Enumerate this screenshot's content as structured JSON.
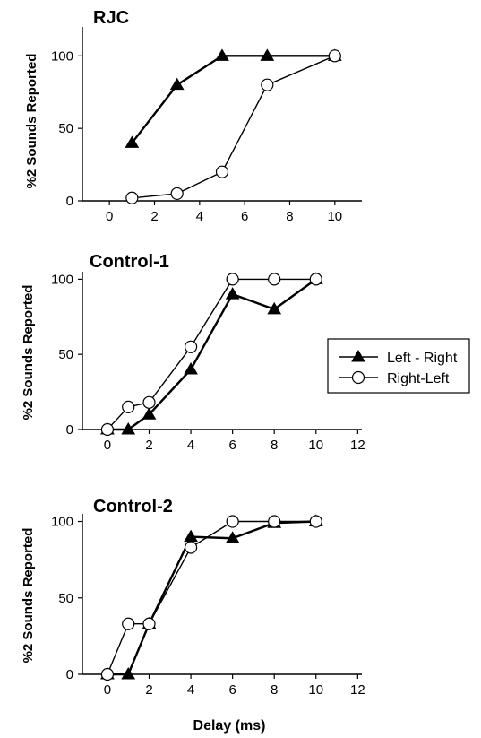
{
  "figure": {
    "xlabel": "Delay (ms)",
    "legend": [
      {
        "label": "Left - Right",
        "marker": "triangle-filled"
      },
      {
        "label": "Right-Left",
        "marker": "circle-open"
      }
    ]
  },
  "chart_data": [
    {
      "type": "line",
      "title": "RJC",
      "ylabel": "%2 Sounds Reported",
      "xlabel": "",
      "xlim": [
        -1.2,
        11.2
      ],
      "ylim": [
        0,
        120
      ],
      "xticks": [
        0,
        2,
        4,
        6,
        8,
        10
      ],
      "yticks": [
        0,
        50,
        100
      ],
      "series": [
        {
          "name": "Left - Right",
          "marker": "triangle",
          "x": [
            1,
            3,
            5,
            7,
            10
          ],
          "y": [
            40,
            80,
            100,
            100,
            100
          ]
        },
        {
          "name": "Right-Left",
          "marker": "circle",
          "x": [
            1,
            3,
            5,
            7,
            10
          ],
          "y": [
            2,
            5,
            20,
            80,
            100
          ]
        }
      ]
    },
    {
      "type": "line",
      "title": "Control-1",
      "ylabel": "%2 Sounds Reported",
      "xlabel": "",
      "xlim": [
        -1.2,
        12.2
      ],
      "ylim": [
        0,
        105
      ],
      "xticks": [
        0,
        2,
        4,
        6,
        8,
        10,
        12
      ],
      "yticks": [
        0,
        50,
        100
      ],
      "series": [
        {
          "name": "Left - Right",
          "marker": "triangle",
          "x": [
            0,
            1,
            2,
            4,
            6,
            8,
            10
          ],
          "y": [
            0,
            0,
            10,
            40,
            90,
            80,
            100
          ]
        },
        {
          "name": "Right-Left",
          "marker": "circle",
          "x": [
            0,
            1,
            2,
            4,
            6,
            8,
            10
          ],
          "y": [
            0,
            15,
            18,
            55,
            100,
            100,
            100
          ]
        }
      ]
    },
    {
      "type": "line",
      "title": "Control-2",
      "ylabel": "%2 Sounds Reported",
      "xlabel": "Delay (ms)",
      "xlim": [
        -1.2,
        12.2
      ],
      "ylim": [
        0,
        105
      ],
      "xticks": [
        0,
        2,
        4,
        6,
        8,
        10,
        12
      ],
      "yticks": [
        0,
        50,
        100
      ],
      "series": [
        {
          "name": "Left - Right",
          "marker": "triangle",
          "x": [
            0,
            1,
            2,
            4,
            6,
            8,
            10
          ],
          "y": [
            0,
            0,
            33,
            90,
            89,
            99,
            100
          ]
        },
        {
          "name": "Right-Left",
          "marker": "circle",
          "x": [
            0,
            1,
            2,
            4,
            6,
            8,
            10
          ],
          "y": [
            0,
            33,
            33,
            83,
            100,
            100,
            100
          ]
        }
      ]
    }
  ]
}
